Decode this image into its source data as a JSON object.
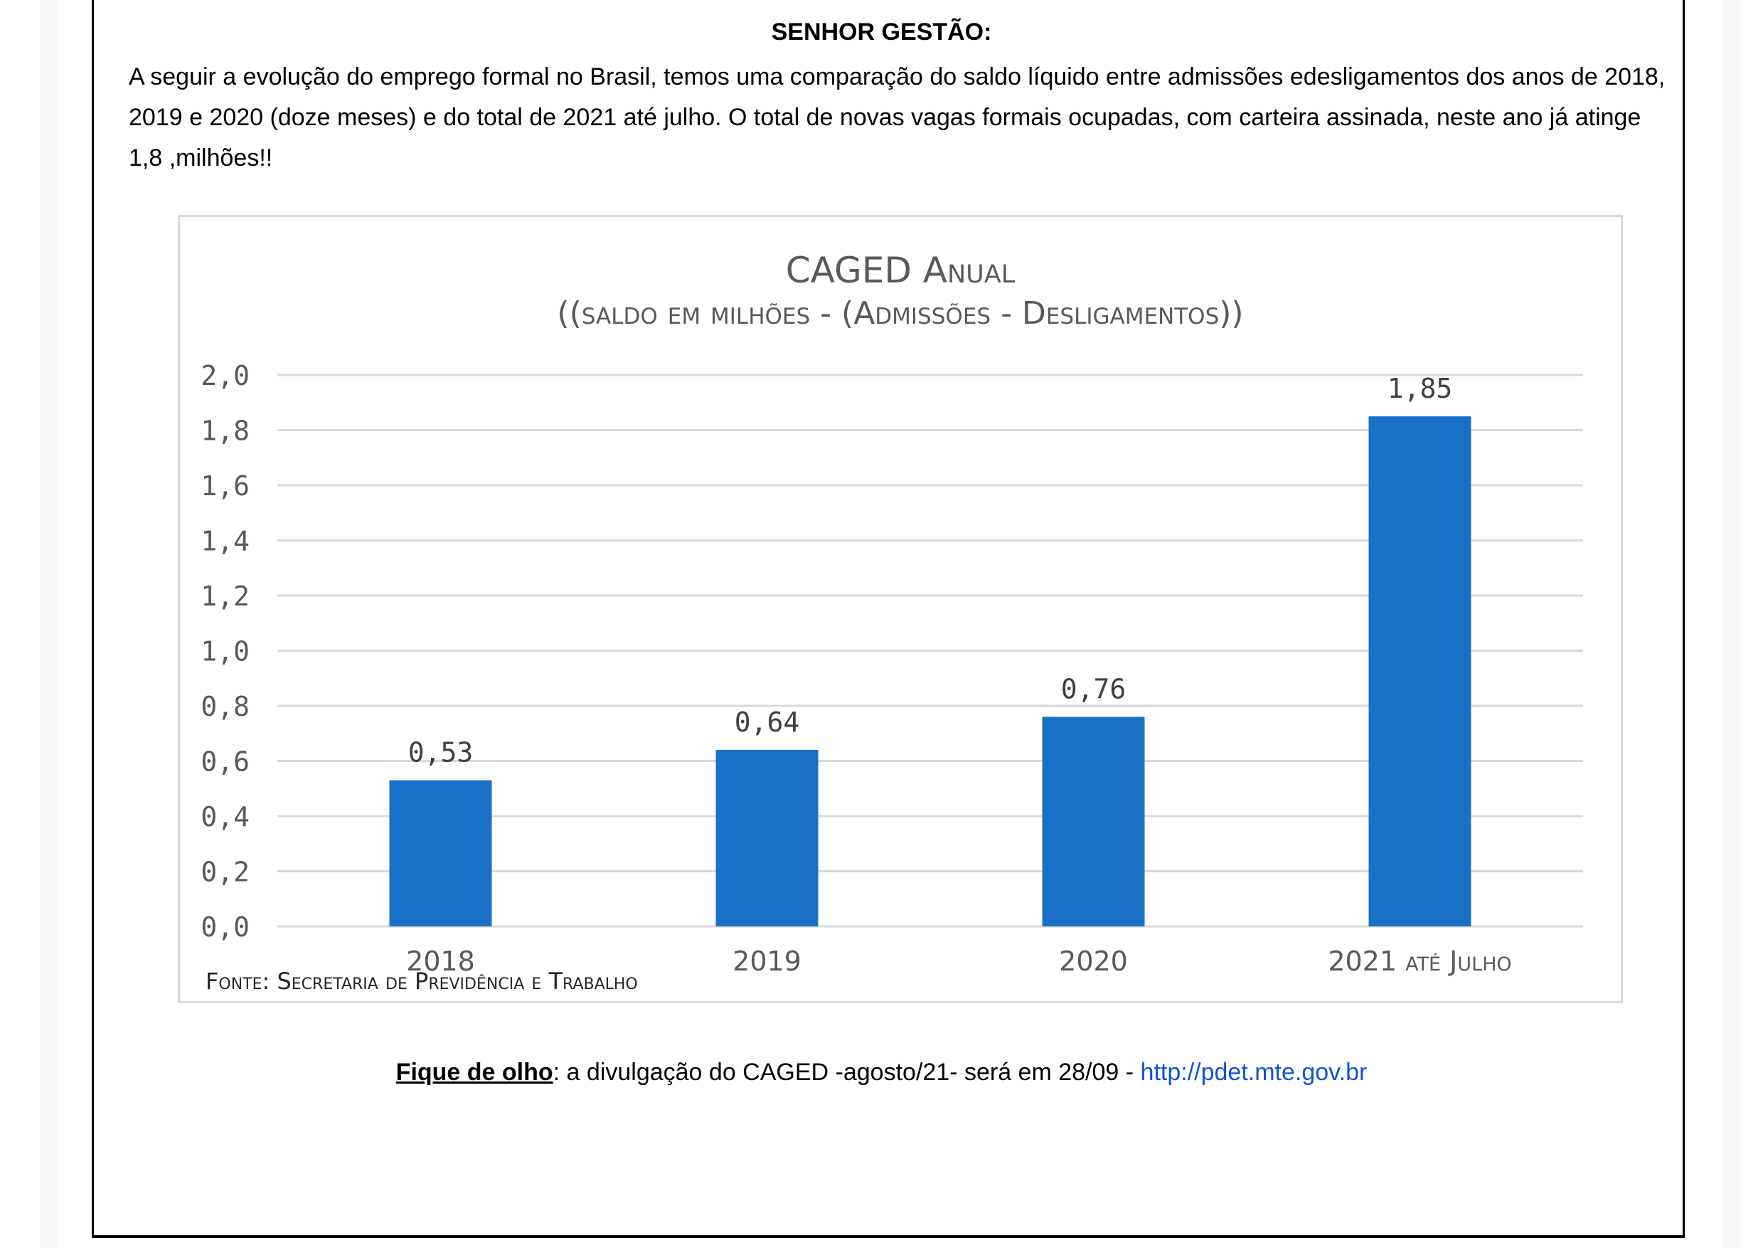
{
  "document": {
    "heading": "SENHOR GESTÃO:",
    "intro": "A seguir a evolução do emprego formal no Brasil, temos uma comparação do saldo líquido entre admissões edesligamentos dos anos de 2018, 2019 e 2020 (doze meses) e do total de 2021 até julho. O total de novas vagas formais ocupadas, com carteira assinada, neste ano já atinge 1,8 ,milhões!!",
    "footer": {
      "emphasis": "Fique de olho",
      "text": ": a divulgação do CAGED -agosto/21- será em 28/09 - ",
      "link": "http://pdet.mte.gov.br"
    }
  },
  "chart_data": {
    "type": "bar",
    "title": "CAGED Anual",
    "subtitle": "((saldo em milhões - (Admissões - Desligamentos))",
    "source": "Fonte: Secretaria de Previdência e Trabalho",
    "categories": [
      "2018",
      "2019",
      "2020",
      "2021 até Julho"
    ],
    "values": [
      0.53,
      0.64,
      0.76,
      1.85
    ],
    "value_labels": [
      "0,53",
      "0,64",
      "0,76",
      "1,85"
    ],
    "xlabel": "",
    "ylabel": "",
    "ylim": [
      0,
      2.0
    ],
    "yticks": [
      0,
      0.2,
      0.4,
      0.6,
      0.8,
      1.0,
      1.2,
      1.4,
      1.6,
      1.8,
      2.0
    ],
    "ytick_labels": [
      "0,0",
      "0,2",
      "0,4",
      "0,6",
      "0,8",
      "1,0",
      "1,2",
      "1,4",
      "1,6",
      "1,8",
      "2,0"
    ],
    "grid": true,
    "legend": "none",
    "colors": {
      "bar": "#1a70c9",
      "grid": "#d9d9d9",
      "label": "#404040",
      "axis_text": "#595959"
    }
  }
}
